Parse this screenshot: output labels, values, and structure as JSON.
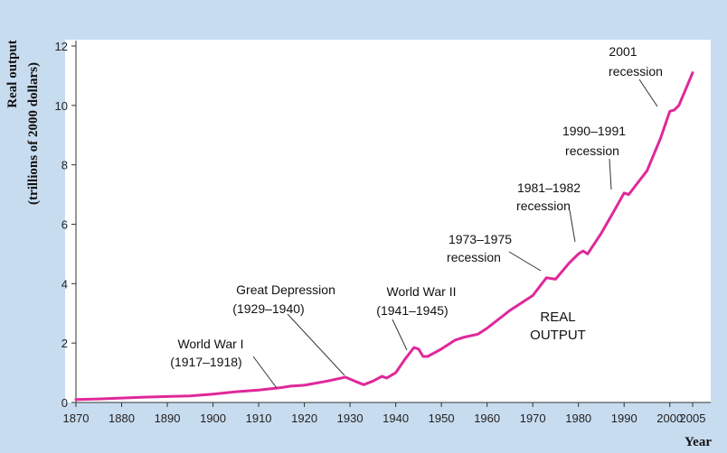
{
  "chart_data": {
    "type": "line",
    "title": "",
    "xlabel": "Year",
    "ylabel_line1": "Real output",
    "ylabel_line2": "(trillions of 2000 dollars)",
    "xlim": [
      1870,
      2005
    ],
    "ylim": [
      0,
      12
    ],
    "xticks": [
      "1870",
      "1880",
      "1890",
      "1900",
      "1910",
      "1920",
      "1930",
      "1940",
      "1950",
      "1960",
      "1970",
      "1980",
      "1990",
      "2000",
      "2005"
    ],
    "yticks": [
      "0",
      "2",
      "4",
      "6",
      "8",
      "10",
      "12"
    ],
    "line_color": "#e0289a",
    "series": [
      {
        "name": "REAL OUTPUT",
        "x": [
          1870,
          1875,
          1880,
          1885,
          1890,
          1895,
          1900,
          1905,
          1910,
          1915,
          1917,
          1920,
          1925,
          1929,
          1931,
          1933,
          1935,
          1937,
          1938,
          1940,
          1942,
          1944,
          1945,
          1946,
          1947,
          1950,
          1953,
          1955,
          1958,
          1960,
          1965,
          1970,
          1973,
          1975,
          1978,
          1980,
          1981,
          1982,
          1985,
          1988,
          1990,
          1991,
          1993,
          1995,
          1998,
          2000,
          2001,
          2002,
          2005
        ],
        "y": [
          0.1,
          0.12,
          0.15,
          0.18,
          0.2,
          0.22,
          0.28,
          0.36,
          0.42,
          0.5,
          0.55,
          0.58,
          0.72,
          0.85,
          0.72,
          0.6,
          0.72,
          0.88,
          0.82,
          1.0,
          1.45,
          1.85,
          1.8,
          1.55,
          1.55,
          1.8,
          2.1,
          2.2,
          2.3,
          2.5,
          3.1,
          3.6,
          4.2,
          4.15,
          4.7,
          5.0,
          5.1,
          5.0,
          5.7,
          6.5,
          7.05,
          7.0,
          7.4,
          7.8,
          8.9,
          9.8,
          9.85,
          10.0,
          11.1
        ]
      }
    ],
    "annotations": [
      {
        "lines": [
          "2001",
          "recession"
        ]
      },
      {
        "lines": [
          "1990–1991",
          "recession"
        ]
      },
      {
        "lines": [
          "1981–1982",
          "recession"
        ]
      },
      {
        "lines": [
          "1973–1975",
          "recession"
        ]
      },
      {
        "lines": [
          "Great Depression",
          "(1929–1940)"
        ]
      },
      {
        "lines": [
          "World War II",
          "(1941–1945)"
        ]
      },
      {
        "lines": [
          "World War I",
          "(1917–1918)"
        ]
      },
      {
        "lines": [
          "REAL",
          "OUTPUT"
        ]
      }
    ]
  }
}
